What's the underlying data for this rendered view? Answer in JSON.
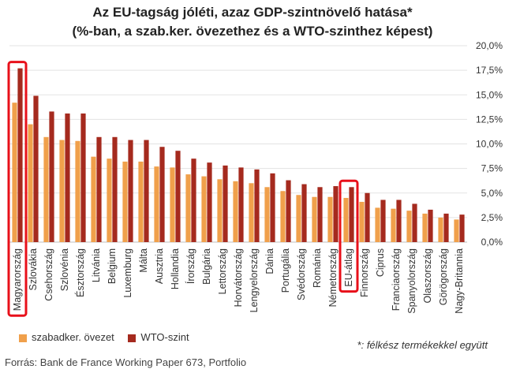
{
  "chart_data": {
    "type": "bar",
    "title_line1": "Az EU-tagság jóléti, azaz GDP-szintnövelő hatása*",
    "title_line2": "(%-ban, a szab.ker. övezethez és a WTO-szinthez képest)",
    "categories": [
      "Magyarország",
      "Szlovákia",
      "Csehország",
      "Szlovénia",
      "Észtország",
      "Litvánia",
      "Belgium",
      "Luxemburg",
      "Málta",
      "Ausztria",
      "Hollandia",
      "Írország",
      "Bulgária",
      "Lettország",
      "Horvátország",
      "Lengyelország",
      "Dánia",
      "Portugália",
      "Svédország",
      "Románia",
      "Németország",
      "EU-átlag",
      "Finnország",
      "Ciprus",
      "Franciaország",
      "Spanyolország",
      "Olaszország",
      "Görögország",
      "Nagy-Britannia"
    ],
    "series": [
      {
        "name": "szabadker. övezet",
        "color": "#f0a04b",
        "values": [
          14.2,
          12.0,
          10.7,
          10.4,
          10.3,
          8.7,
          8.5,
          8.2,
          8.2,
          7.7,
          7.6,
          6.9,
          6.7,
          6.4,
          6.2,
          6.0,
          5.6,
          5.2,
          4.8,
          4.6,
          4.6,
          4.5,
          4.1,
          3.5,
          3.4,
          3.2,
          2.9,
          2.5,
          2.3
        ]
      },
      {
        "name": "WTO-szint",
        "color": "#a52a1e",
        "values": [
          17.7,
          14.9,
          13.3,
          13.1,
          13.1,
          10.7,
          10.7,
          10.4,
          10.4,
          9.7,
          9.3,
          8.5,
          8.1,
          7.8,
          7.6,
          7.4,
          7.0,
          6.3,
          5.9,
          5.6,
          5.7,
          5.6,
          5.0,
          4.3,
          4.3,
          3.9,
          3.3,
          2.9,
          2.8
        ]
      }
    ],
    "y_ticks": [
      "0,0%",
      "2,5%",
      "5,0%",
      "7,5%",
      "10,0%",
      "12,5%",
      "15,0%",
      "17,5%",
      "20,0%"
    ],
    "ylim": [
      0,
      20
    ],
    "y_axis_position": "right",
    "grid": true,
    "highlighted_categories": [
      "Magyarország",
      "EU-átlag"
    ],
    "highlight_color": "#e8101a",
    "legend_position": "bottom-left"
  },
  "footnote": "*: félkész termékekkel együtt",
  "source": "Forrás: Bank de France Working Paper 673, Portfolio"
}
